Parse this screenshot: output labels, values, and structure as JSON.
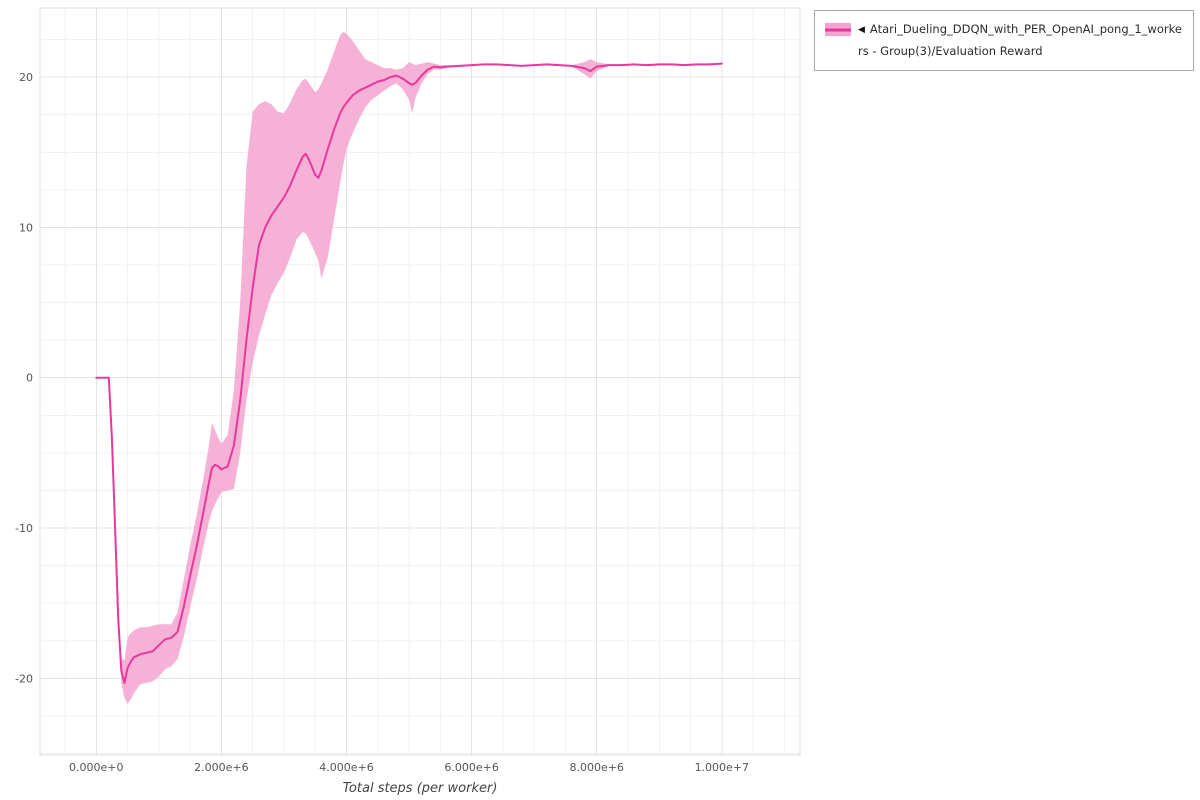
{
  "legend": {
    "collapse_glyph": "◀",
    "label": "Atari_Dueling_DDQN_with_PER_OpenAI_pong_1_workers - Group(3)/Evaluation Reward"
  },
  "chart_data": {
    "type": "line",
    "title": "",
    "xlabel": "Total steps (per worker)",
    "ylabel": "",
    "grid": true,
    "legend_position": "top-right-outside",
    "xlim": [
      -900000,
      11250000
    ],
    "ylim": [
      -25.1,
      24.6
    ],
    "x_scale": 1000000,
    "x_minor_step": 500000,
    "y_minor_step": 2.5,
    "x_ticks": [
      {
        "value": 0,
        "label": "0.000e+0"
      },
      {
        "value": 2000000,
        "label": "2.000e+6"
      },
      {
        "value": 4000000,
        "label": "4.000e+6"
      },
      {
        "value": 6000000,
        "label": "6.000e+6"
      },
      {
        "value": 8000000,
        "label": "8.000e+6"
      },
      {
        "value": 10000000,
        "label": "1.000e+7"
      }
    ],
    "y_ticks": [
      {
        "value": 20,
        "label": "20"
      },
      {
        "value": 10,
        "label": "10"
      },
      {
        "value": 0,
        "label": "0"
      },
      {
        "value": -10,
        "label": "-10"
      },
      {
        "value": -20,
        "label": "-20"
      }
    ],
    "series": [
      {
        "name": "Atari_Dueling_DDQN_with_PER_OpenAI_pong_1_workers - Group(3)/Evaluation Reward",
        "line_color": "#e6399b",
        "band_color": "#f5a3d0",
        "band_opacity": 0.85,
        "x": [
          0.0,
          0.1,
          0.2,
          0.25,
          0.3,
          0.35,
          0.4,
          0.45,
          0.5,
          0.55,
          0.6,
          0.7,
          0.8,
          0.9,
          1.0,
          1.1,
          1.2,
          1.3,
          1.4,
          1.5,
          1.6,
          1.7,
          1.8,
          1.85,
          1.9,
          1.95,
          2.0,
          2.1,
          2.2,
          2.3,
          2.4,
          2.5,
          2.6,
          2.7,
          2.8,
          2.9,
          3.0,
          3.1,
          3.2,
          3.3,
          3.35,
          3.4,
          3.5,
          3.55,
          3.6,
          3.7,
          3.8,
          3.9,
          3.95,
          4.0,
          4.1,
          4.2,
          4.3,
          4.4,
          4.5,
          4.6,
          4.7,
          4.8,
          4.9,
          5.0,
          5.05,
          5.1,
          5.2,
          5.3,
          5.4,
          5.5,
          5.6,
          5.8,
          6.0,
          6.2,
          6.4,
          6.6,
          6.8,
          7.0,
          7.2,
          7.4,
          7.6,
          7.8,
          7.9,
          8.0,
          8.2,
          8.4,
          8.6,
          8.8,
          9.0,
          9.2,
          9.4,
          9.6,
          9.8,
          10.0
        ],
        "mean": [
          0,
          0,
          0,
          -4,
          -10,
          -16,
          -19.5,
          -20.3,
          -19.3,
          -18.9,
          -18.6,
          -18.4,
          -18.3,
          -18.2,
          -17.8,
          -17.4,
          -17.3,
          -16.9,
          -15.2,
          -13.2,
          -11.3,
          -9.2,
          -7.0,
          -6.0,
          -5.8,
          -5.9,
          -6.1,
          -5.9,
          -4.5,
          -1.5,
          2.5,
          6.0,
          8.8,
          10.0,
          10.8,
          11.4,
          12.0,
          12.8,
          13.8,
          14.7,
          14.9,
          14.5,
          13.5,
          13.3,
          13.8,
          15.2,
          16.5,
          17.6,
          18.0,
          18.3,
          18.8,
          19.1,
          19.3,
          19.5,
          19.7,
          19.8,
          20.0,
          20.1,
          19.9,
          19.6,
          19.5,
          19.6,
          20.1,
          20.5,
          20.7,
          20.65,
          20.7,
          20.75,
          20.8,
          20.85,
          20.85,
          20.8,
          20.75,
          20.8,
          20.85,
          20.8,
          20.75,
          20.6,
          20.4,
          20.7,
          20.8,
          20.8,
          20.85,
          20.8,
          20.85,
          20.85,
          20.8,
          20.85,
          20.85,
          20.9
        ],
        "lower": [
          0,
          0,
          0,
          -4.3,
          -10.5,
          -16.6,
          -20.3,
          -21.3,
          -21.7,
          -21.4,
          -21.0,
          -20.4,
          -20.3,
          -20.2,
          -19.9,
          -19.4,
          -19.2,
          -18.7,
          -17.2,
          -15.3,
          -13.5,
          -11.5,
          -9.6,
          -8.9,
          -8.4,
          -8.0,
          -7.6,
          -7.5,
          -7.4,
          -5.0,
          -1.5,
          1.0,
          2.8,
          4.2,
          5.5,
          6.3,
          7.0,
          8.0,
          9.2,
          9.7,
          9.6,
          9.2,
          8.3,
          7.8,
          6.6,
          8.0,
          10.5,
          13.0,
          14.2,
          15.2,
          16.3,
          17.2,
          18.0,
          18.5,
          18.8,
          19.1,
          19.4,
          19.6,
          19.2,
          18.5,
          17.6,
          18.6,
          19.6,
          20.2,
          20.5,
          20.5,
          20.6,
          20.7,
          20.75,
          20.8,
          20.8,
          20.75,
          20.7,
          20.75,
          20.8,
          20.75,
          20.7,
          20.2,
          19.9,
          20.4,
          20.75,
          20.75,
          20.8,
          20.75,
          20.8,
          20.8,
          20.75,
          20.8,
          20.8,
          20.85
        ],
        "upper": [
          0,
          0,
          0,
          -3.7,
          -9.5,
          -15.4,
          -18.7,
          -18.8,
          -17.3,
          -17.0,
          -16.8,
          -16.6,
          -16.6,
          -16.5,
          -16.4,
          -16.4,
          -16.4,
          -15.6,
          -13.4,
          -11.2,
          -9.2,
          -7.0,
          -4.5,
          -3.0,
          -3.5,
          -4.0,
          -4.4,
          -3.8,
          -0.8,
          5.0,
          14.0,
          17.7,
          18.2,
          18.4,
          18.2,
          17.7,
          17.6,
          18.3,
          19.2,
          19.8,
          19.9,
          19.6,
          19.0,
          19.2,
          19.6,
          20.5,
          21.7,
          22.8,
          23.0,
          22.9,
          22.4,
          21.8,
          21.2,
          21.0,
          20.8,
          20.6,
          20.6,
          20.5,
          20.6,
          21.0,
          20.9,
          20.8,
          20.9,
          21.0,
          20.9,
          20.8,
          20.8,
          20.8,
          20.85,
          20.9,
          20.9,
          20.85,
          20.8,
          20.85,
          20.9,
          20.85,
          20.8,
          21.0,
          21.2,
          21.0,
          20.85,
          20.85,
          20.9,
          20.85,
          20.9,
          20.9,
          20.85,
          20.9,
          20.9,
          20.95
        ]
      }
    ]
  }
}
